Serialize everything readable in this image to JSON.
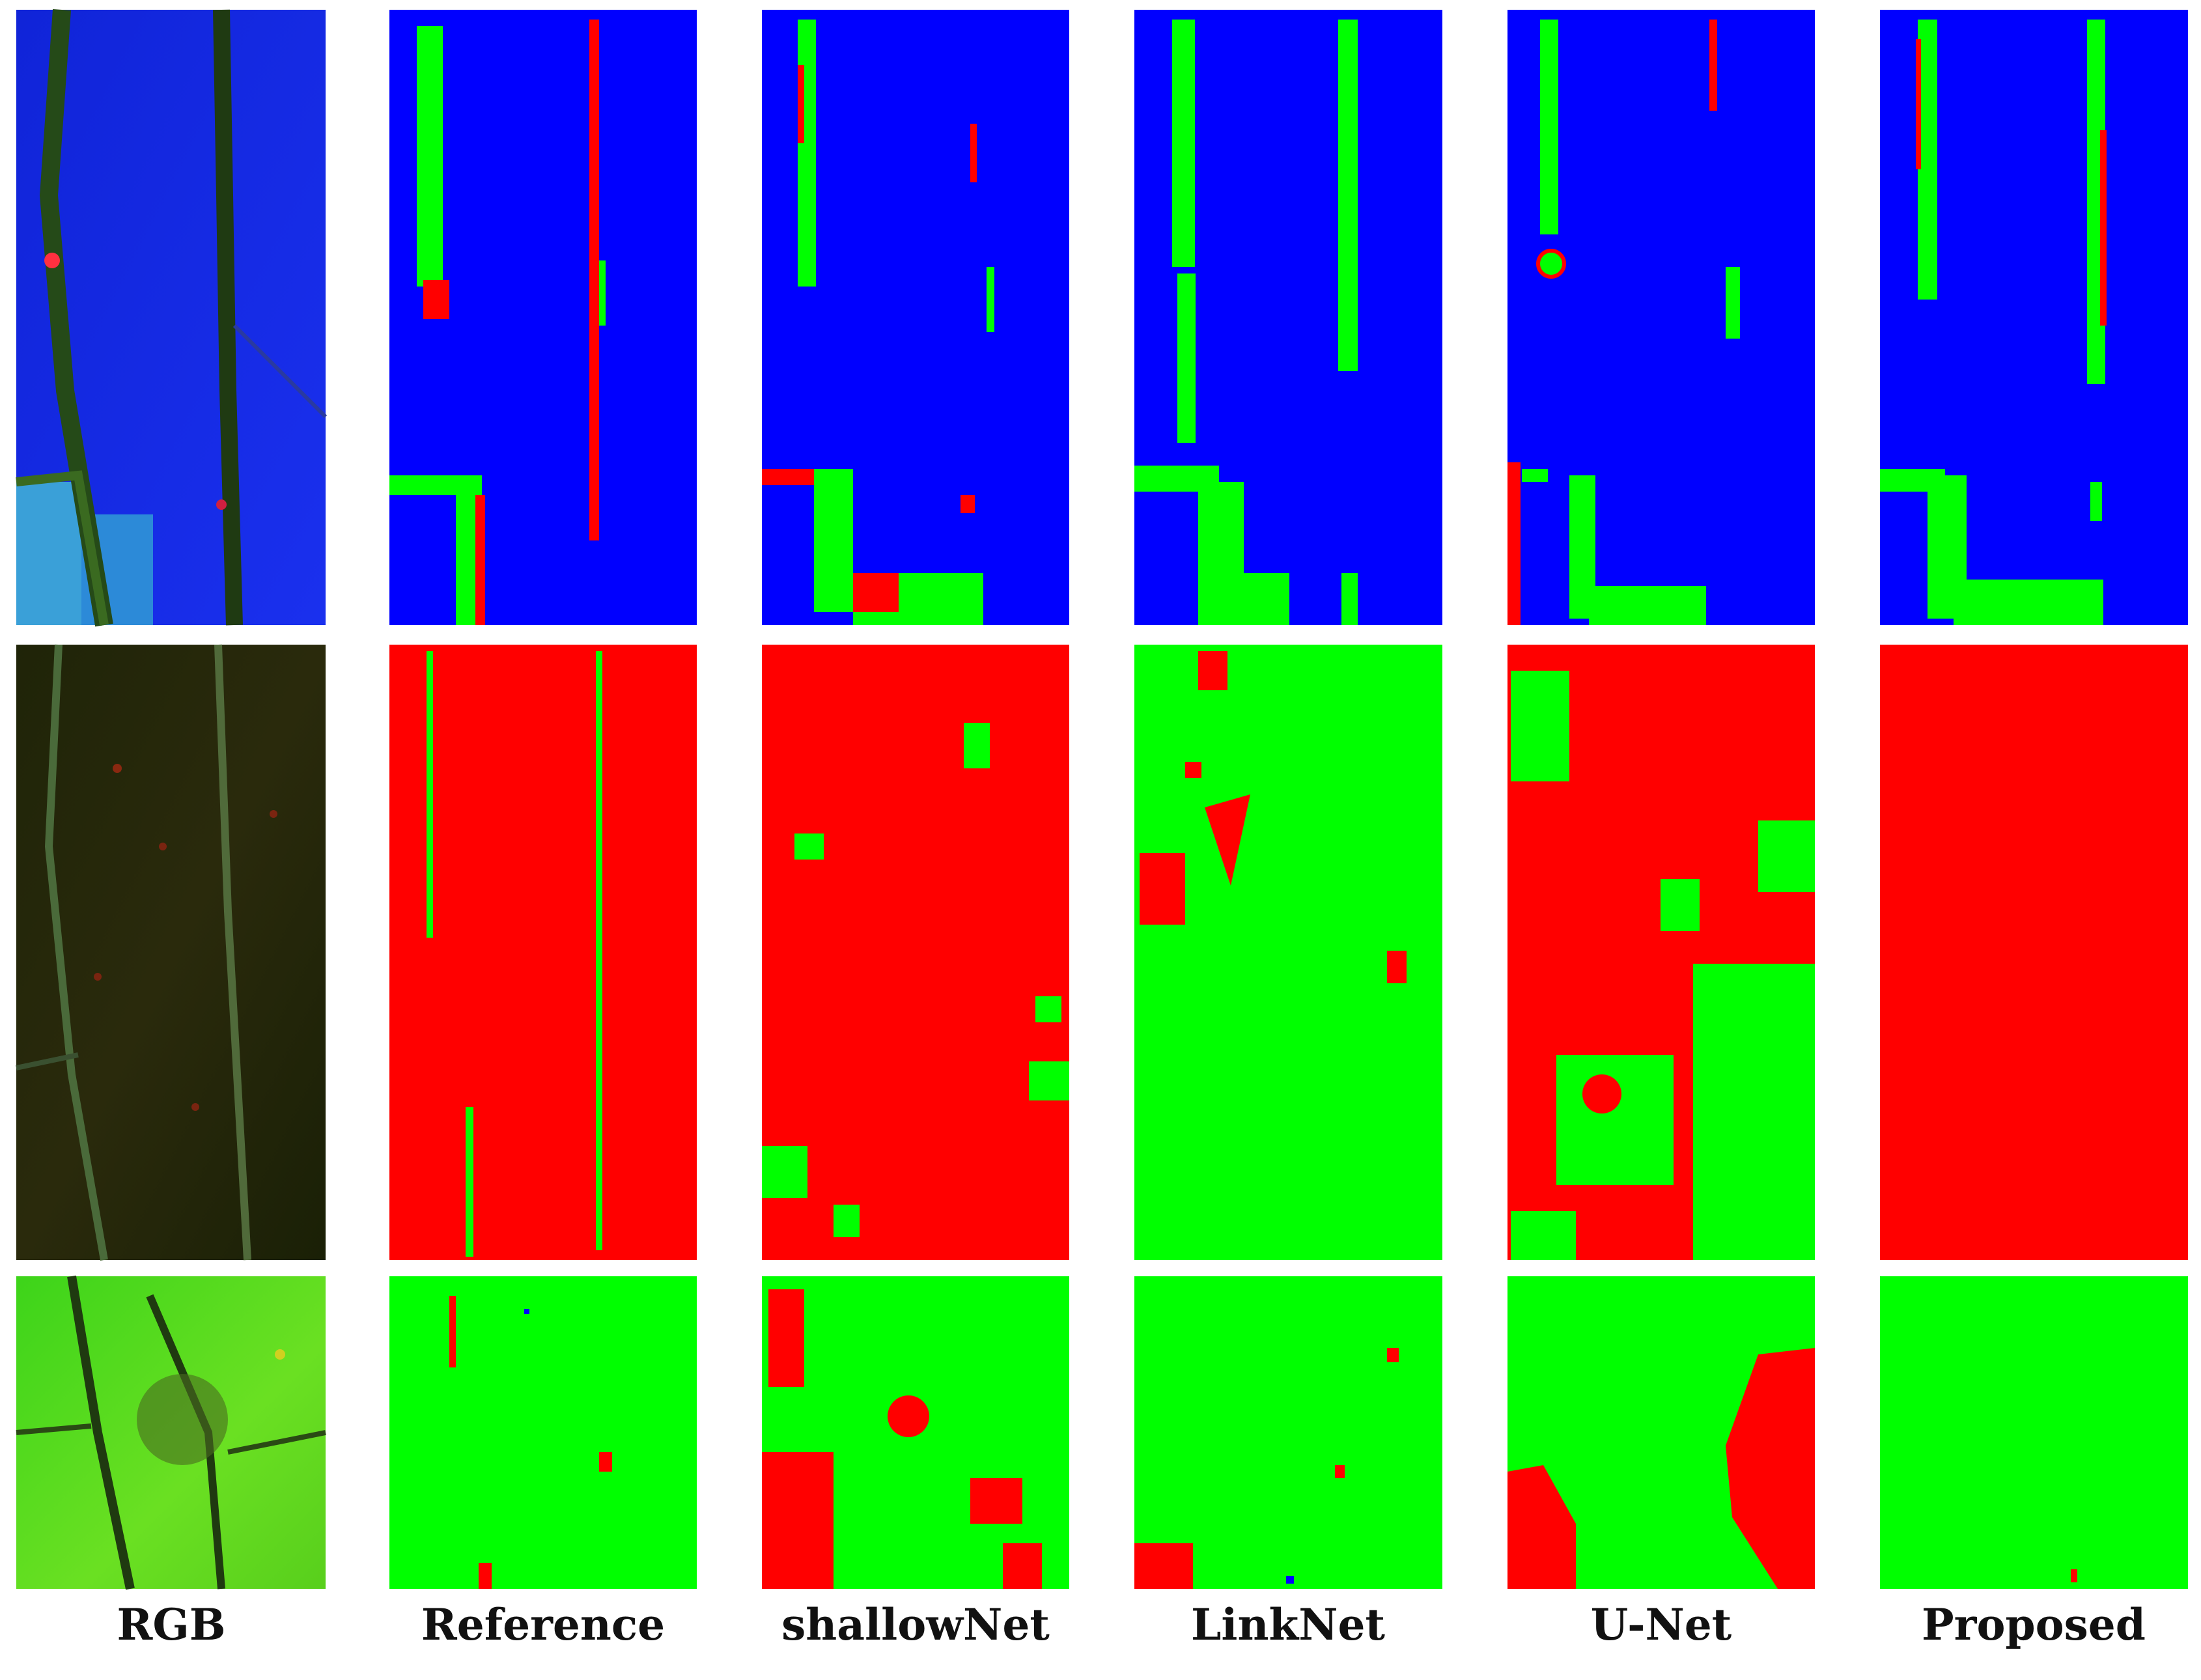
{
  "columns": [
    {
      "label": "RGB"
    },
    {
      "label": "Reference"
    },
    {
      "label": "shallowNet"
    },
    {
      "label": "LinkNet"
    },
    {
      "label": "U-Net"
    },
    {
      "label": "Proposed"
    }
  ],
  "class_colors": {
    "background": "#0000FF",
    "diseased": "#FF0000",
    "healthy": "#00FF00"
  },
  "rows": [
    {
      "name": "row-1",
      "cells": [
        "rgb-blue-leaf",
        "mask-mostly-blue",
        "mask-mostly-blue",
        "mask-mostly-blue",
        "mask-mostly-blue",
        "mask-mostly-blue"
      ]
    },
    {
      "name": "row-2",
      "cells": [
        "rgb-dark-leaf",
        "mask-mostly-red",
        "mask-mostly-red",
        "mask-mostly-green",
        "mask-mixed-red-green",
        "mask-all-red"
      ]
    },
    {
      "name": "row-3",
      "cells": [
        "rgb-green-leaf",
        "mask-mostly-green",
        "mask-mixed-green-red",
        "mask-mostly-green",
        "mask-green-red-blobs",
        "mask-all-green"
      ]
    }
  ]
}
